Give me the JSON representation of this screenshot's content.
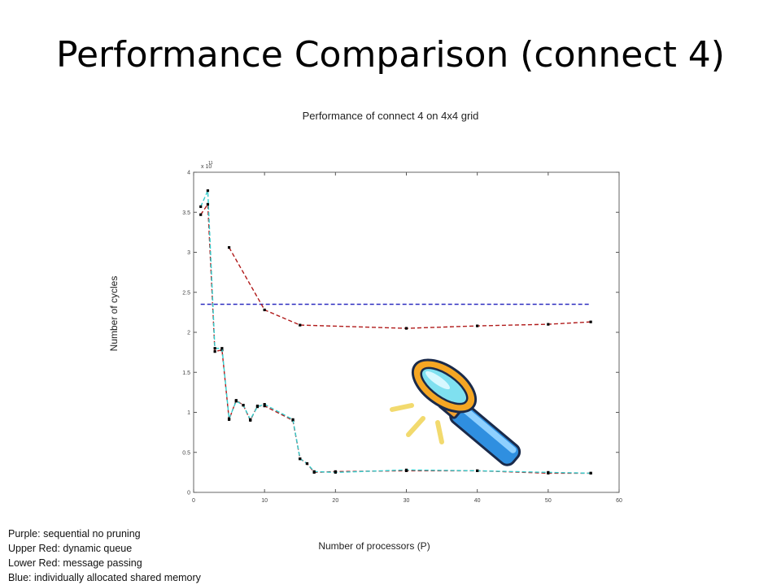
{
  "slide": {
    "title": "Performance Comparison (connect 4)"
  },
  "legend_notes": [
    "Purple: sequential no pruning",
    "Upper Red:  dynamic queue",
    "Lower Red: message passing",
    "Blue: individually allocated shared memory"
  ],
  "colors": {
    "blue": "#2b2bbf",
    "red": "#b01a1a",
    "cyan": "#33cccc",
    "marker": "#000000",
    "axis": "#555555"
  },
  "chart_data": {
    "type": "line",
    "title": "Performance of connect 4 on 4x4 grid",
    "xlabel": "Number of processors (P)",
    "ylabel": "Number of cycles",
    "y_exponent_label": "x 10",
    "y_exponent_power": "11",
    "xlim": [
      0,
      60
    ],
    "ylim": [
      0,
      4
    ],
    "x_ticks": [
      0,
      10,
      20,
      30,
      40,
      50,
      60
    ],
    "y_ticks": [
      0,
      0.5,
      1,
      1.5,
      2,
      2.5,
      3,
      3.5,
      4
    ],
    "x_tick_labels": [
      "0",
      "10",
      "20",
      "30",
      "40",
      "50",
      "60"
    ],
    "y_tick_labels": [
      "0",
      "0.5",
      "1",
      "1.5",
      "2",
      "2.5",
      "3",
      "3.5",
      "4"
    ],
    "grid": false,
    "series": [
      {
        "name": "Purple: sequential no pruning",
        "color": "#2b2bbf",
        "markers": false,
        "x": [
          1,
          56
        ],
        "y": [
          2.35,
          2.35
        ]
      },
      {
        "name": "Upper Red: dynamic queue",
        "color": "#b01a1a",
        "markers": true,
        "x": [
          5,
          10,
          15,
          30,
          40,
          50,
          56
        ],
        "y": [
          3.06,
          2.28,
          2.09,
          2.05,
          2.08,
          2.1,
          2.13
        ]
      },
      {
        "name": "Lower Red: message passing",
        "color": "#b01a1a",
        "markers": true,
        "x": [
          1,
          2,
          3,
          4,
          5,
          6,
          7,
          8,
          9,
          10,
          14,
          15,
          16,
          17,
          20,
          30,
          40,
          50,
          56
        ],
        "y": [
          3.47,
          3.6,
          1.76,
          1.78,
          0.91,
          1.15,
          1.09,
          0.9,
          1.08,
          1.08,
          0.9,
          0.42,
          0.36,
          0.25,
          0.26,
          0.27,
          0.27,
          0.24,
          0.24
        ]
      },
      {
        "name": "Blue: individually allocated shared memory",
        "color": "#33cccc",
        "markers": true,
        "x": [
          1,
          2,
          3,
          4,
          5,
          6,
          7,
          8,
          9,
          10,
          14,
          15,
          16,
          17,
          20,
          30,
          40,
          50,
          56
        ],
        "y": [
          3.57,
          3.77,
          1.8,
          1.8,
          0.92,
          1.14,
          1.09,
          0.91,
          1.07,
          1.1,
          0.91,
          0.42,
          0.36,
          0.26,
          0.25,
          0.28,
          0.27,
          0.25,
          0.24
        ]
      }
    ]
  }
}
